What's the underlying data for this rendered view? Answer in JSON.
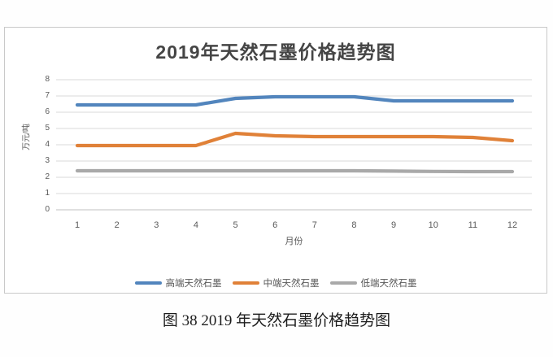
{
  "caption": "图 38 2019 年天然石墨价格趋势图",
  "chart_data": {
    "type": "line",
    "title": "2019年天然石墨价格趋势图",
    "xlabel": "月份",
    "ylabel": "万元/吨",
    "x": [
      "1",
      "2",
      "3",
      "4",
      "5",
      "6",
      "7",
      "8",
      "9",
      "10",
      "11",
      "12"
    ],
    "y_ticks": [
      0,
      1,
      2,
      3,
      4,
      5,
      6,
      7,
      8
    ],
    "ylim": [
      0,
      8
    ],
    "grid": true,
    "legend_position": "bottom",
    "colors": {
      "grid": "#d9d9d9",
      "axis_zero_line": "#c2c2c2",
      "tick_text": "#595959",
      "title_text": "#454545"
    },
    "series": [
      {
        "name": "高端天然石墨",
        "color": "#5285bd",
        "values": [
          6.45,
          6.45,
          6.45,
          6.45,
          6.85,
          6.95,
          6.95,
          6.95,
          6.7,
          6.7,
          6.7,
          6.7
        ]
      },
      {
        "name": "中端天然石墨",
        "color": "#e08138",
        "values": [
          3.95,
          3.95,
          3.95,
          3.95,
          4.7,
          4.55,
          4.5,
          4.5,
          4.5,
          4.5,
          4.45,
          4.25
        ]
      },
      {
        "name": "低端天然石墨",
        "color": "#a9a9a9",
        "values": [
          2.4,
          2.4,
          2.4,
          2.4,
          2.4,
          2.4,
          2.4,
          2.4,
          2.38,
          2.36,
          2.35,
          2.35
        ]
      }
    ]
  }
}
